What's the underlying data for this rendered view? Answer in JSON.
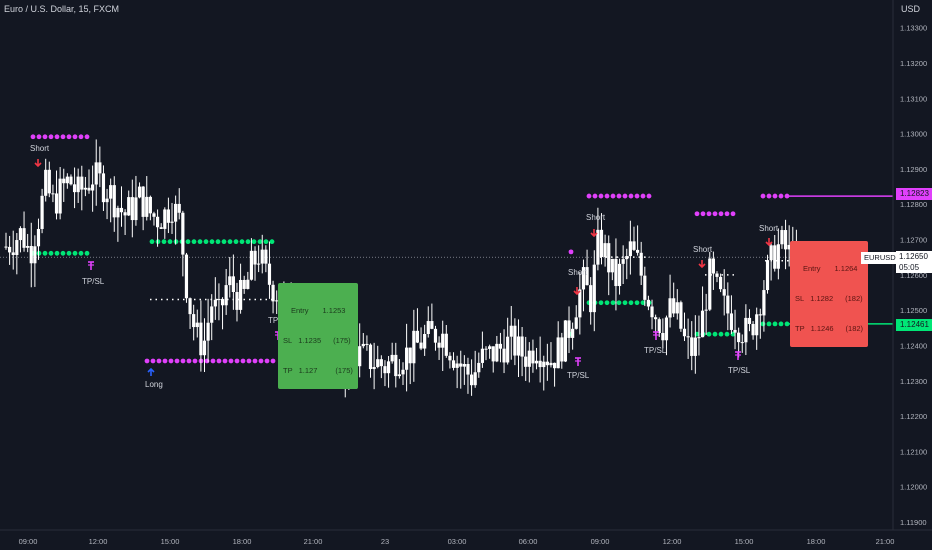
{
  "header": {
    "title": "Euro / U.S. Dollar, 15, FXCM",
    "currency": "USD"
  },
  "price_scale": {
    "current_symbol": "EURUSD",
    "current_price": "1.12650",
    "countdown": "05:05",
    "magenta_label": "1.12823",
    "green_label": "1.12461"
  },
  "signals": {
    "short1": "Short",
    "short2": "Short",
    "short3": "Short",
    "short4": "Short",
    "short5": "Short",
    "long1": "Long",
    "tpsl1": "TP/SL",
    "tpsl2": "TP/SL",
    "tpsl3": "TP/SL",
    "tpsl4": "TP/SL",
    "tpsl5": "TP/SL"
  },
  "box_long": {
    "entry": "Entry",
    "entry_val": "1.1253",
    "sl": "SL",
    "sl_val": "1.1235",
    "sl_pts": "(175)",
    "tp": "TP",
    "tp_val": "1.127",
    "tp_pts": "(175)"
  },
  "box_short": {
    "entry": "Entry",
    "entry_val": "1.1264",
    "sl": "SL",
    "sl_val": "1.1282",
    "sl_pts": "(182)",
    "tp": "TP",
    "tp_val": "1.1246",
    "tp_pts": "(182)"
  },
  "colors": {
    "background": "#131722",
    "candle": "#ffffff",
    "magenta": "#e040fb",
    "green": "#00e676",
    "red_arrow": "#f23645",
    "grid": "#1e222d"
  },
  "chart_data": {
    "type": "candlestick",
    "symbol": "EURUSD",
    "timeframe": "15",
    "ylim": [
      1.119,
      1.1335
    ],
    "yticks": [
      "1.13300",
      "1.13200",
      "1.13100",
      "1.13000",
      "1.12900",
      "1.12800",
      "1.12700",
      "1.12600",
      "1.12500",
      "1.12400",
      "1.12300",
      "1.12200",
      "1.12100",
      "1.12000",
      "1.11900"
    ],
    "xticks": [
      "09:00",
      "12:00",
      "15:00",
      "18:00",
      "21:00",
      "23",
      "03:00",
      "06:00",
      "09:00",
      "12:00",
      "15:00",
      "18:00",
      "21:00"
    ],
    "close_path": [
      1.1268,
      1.127,
      1.1272,
      1.1266,
      1.1275,
      1.1285,
      1.128,
      1.1284,
      1.1287,
      1.1283,
      1.1285,
      1.1288,
      1.1286,
      1.1284,
      1.128,
      1.1277,
      1.1279,
      1.1282,
      1.1278,
      1.1276,
      1.1277,
      1.128,
      1.1275,
      1.1254,
      1.1243,
      1.124,
      1.1252,
      1.1248,
      1.1258,
      1.1255,
      1.1253,
      1.1262,
      1.1266,
      1.1259,
      1.1256,
      1.1253,
      1.125,
      1.1248,
      1.1245,
      1.1244,
      1.124,
      1.1237,
      1.1233,
      1.1235,
      1.1238,
      1.1237,
      1.1236,
      1.1235,
      1.1234,
      1.1236,
      1.1237,
      1.1238,
      1.124,
      1.1242,
      1.1243,
      1.1244,
      1.124,
      1.1236,
      1.1233,
      1.1231,
      1.1236,
      1.1237,
      1.1238,
      1.124,
      1.1241,
      1.1238,
      1.1237,
      1.124,
      1.1238,
      1.1236,
      1.1239,
      1.1243,
      1.1251,
      1.1258,
      1.1253,
      1.127,
      1.1265,
      1.1258,
      1.1262,
      1.1267,
      1.1263,
      1.1255,
      1.125,
      1.1245,
      1.125,
      1.1248,
      1.124,
      1.1238,
      1.1246,
      1.126,
      1.1255,
      1.125,
      1.1248,
      1.1245,
      1.1243,
      1.125,
      1.1258,
      1.1265,
      1.1269,
      1.1266,
      1.1264
    ],
    "levels": [
      {
        "name": "short-entry-1",
        "value": 1.1299,
        "color": "magenta"
      },
      {
        "name": "long-tp",
        "value": 1.127,
        "color": "green"
      },
      {
        "name": "long-sl",
        "value": 1.1235,
        "color": "magenta"
      },
      {
        "name": "short-entry-2",
        "value": 1.1283,
        "color": "magenta"
      },
      {
        "name": "short-tp-2",
        "value": 1.125,
        "color": "green"
      },
      {
        "name": "short-entry-3",
        "value": 1.1277,
        "color": "magenta"
      },
      {
        "name": "short-tp-3",
        "value": 1.1244,
        "color": "green"
      },
      {
        "name": "short-sl-current",
        "value": 1.12823,
        "color": "magenta"
      },
      {
        "name": "short-tp-current",
        "value": 1.12461,
        "color": "green"
      }
    ]
  }
}
